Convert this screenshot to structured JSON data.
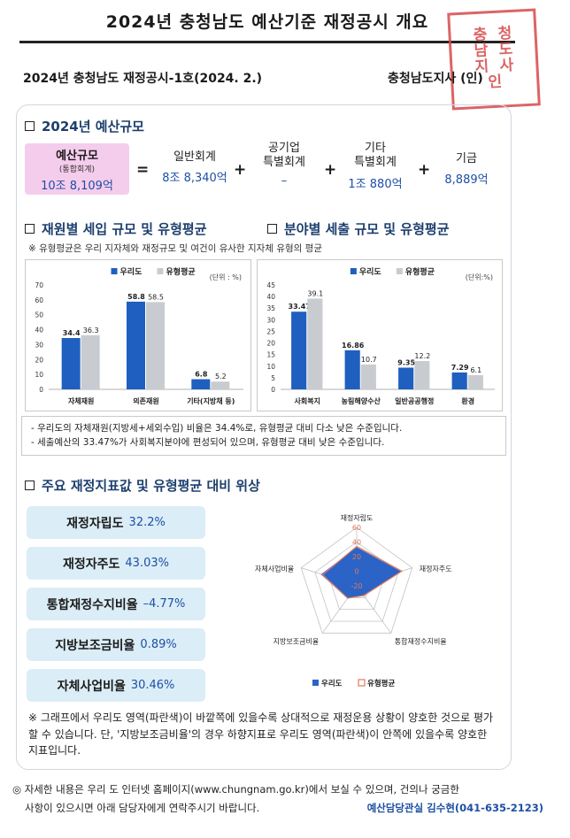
{
  "header": {
    "title": "2024년 충청남도 예산기준 재정공시 개요",
    "issue": "2024년 충청남도 재정공시-1호(2024. 2.)",
    "issuer": "충청남도지사 (인)",
    "seal_text": [
      "충",
      "청",
      "남",
      "도",
      "지",
      "사",
      "인"
    ]
  },
  "budget": {
    "section_title": "2024년 예산규모",
    "total_label": "예산규모",
    "total_sub": "(통합회계)",
    "total_value": "10조 8,109억",
    "equals": "=",
    "plus": "+",
    "items": [
      {
        "label1": "일반회계",
        "label2": "",
        "value": "8조 8,340억"
      },
      {
        "label1": "공기업",
        "label2": "특별회계",
        "value": "–"
      },
      {
        "label1": "기타",
        "label2": "특별회계",
        "value": "1조 880억"
      },
      {
        "label1": "기금",
        "label2": "",
        "value": "8,889억"
      }
    ]
  },
  "revenue_section": {
    "title": "재원별 세입 규모 및 유형평균"
  },
  "expense_section": {
    "title": "분야별 세출 규모 및 유형평균"
  },
  "avg_note": "※ 유형평균은 우리 지자체와 재정규모 및 여건이 유사한 지자체 유형의 평균",
  "colors": {
    "ours": "#1f5fbf",
    "avg": "#c8ccd1",
    "accent": "#1e4fa5",
    "radar_fill": "#2b63c6",
    "radar_avg": "#e07a5f"
  },
  "chart_data": [
    {
      "type": "bar",
      "unit": "(단위 : %)",
      "categories": [
        "자체재원",
        "의존재원",
        "기타(지방채 등)"
      ],
      "series": [
        {
          "name": "우리도",
          "values": [
            34.4,
            58.8,
            6.8
          ]
        },
        {
          "name": "유형평균",
          "values": [
            36.3,
            58.5,
            5.2
          ]
        }
      ],
      "yticks": [
        0,
        10,
        20,
        30,
        40,
        50,
        60,
        70
      ],
      "ylim": [
        0,
        70
      ],
      "legend": "top"
    },
    {
      "type": "bar",
      "unit": "(단위:%)",
      "categories": [
        "사회복지",
        "농림해양수산",
        "일반공공행정",
        "환경"
      ],
      "series": [
        {
          "name": "우리도",
          "values": [
            33.47,
            16.86,
            9.35,
            7.29
          ]
        },
        {
          "name": "유형평균",
          "values": [
            39.1,
            10.7,
            12.2,
            6.1
          ]
        }
      ],
      "yticks": [
        0,
        5,
        10,
        15,
        20,
        25,
        30,
        35,
        40,
        45
      ],
      "ylim": [
        0,
        45
      ],
      "legend": "top"
    },
    {
      "type": "radar",
      "axes": [
        "재정자립도",
        "재정자주도",
        "통합재정수지비율",
        "지방보조금비율",
        "자체사업비율"
      ],
      "rticks": [
        60,
        40,
        20,
        0,
        -20
      ],
      "rlim": [
        -20,
        60
      ],
      "series": [
        {
          "name": "우리도",
          "values": [
            32.2,
            43.03,
            -4.77,
            0.89,
            30.46
          ]
        },
        {
          "name": "유형평균",
          "values": [
            34.0,
            45.0,
            -3.5,
            1.0,
            29.0
          ]
        }
      ],
      "legend": "bottom"
    }
  ],
  "bullets": [
    "- 우리도의 자체재원(지방세+세외수입) 비율은 34.4%로, 유형평균 대비 다소 낮은 수준입니다.",
    "- 세출예산의 33.47%가 사회복지분야에 편성되어 있으며, 유형평균 대비 낮은 수준입니다."
  ],
  "indicators_section": {
    "title": "주요 재정지표값 및 유형평균 대비 위상"
  },
  "indicators": [
    {
      "label": "재정자립도",
      "value": "32.2%"
    },
    {
      "label": "재정자주도",
      "value": "43.03%"
    },
    {
      "label": "통합재정수지비율",
      "value": "–4.77%"
    },
    {
      "label": "지방보조금비율",
      "value": "0.89%"
    },
    {
      "label": "자체사업비율",
      "value": "30.46%"
    }
  ],
  "footnote": "※ 그래프에서 우리도 영역(파란색)이 바깥쪽에 있을수록 상대적으로 재정운용 상황이 양호한 것으로 평가할 수 있습니다. 단, '지방보조금비율'의 경우 하향지표로 우리도 영역(파란색)이 안쪽에 있을수록 양호한 지표입니다.",
  "contact": {
    "line1": "◎ 자세한 내용은 우리 도 인터넷 홈페이지(www.chungnam.go.kr)에서 보실 수 있으며, 건의나 궁금한",
    "line2": "사항이 있으시면 아래 담당자에게 연락주시기 바랍니다.",
    "person": "예산담당관실 김수현(041-635-2123)"
  }
}
